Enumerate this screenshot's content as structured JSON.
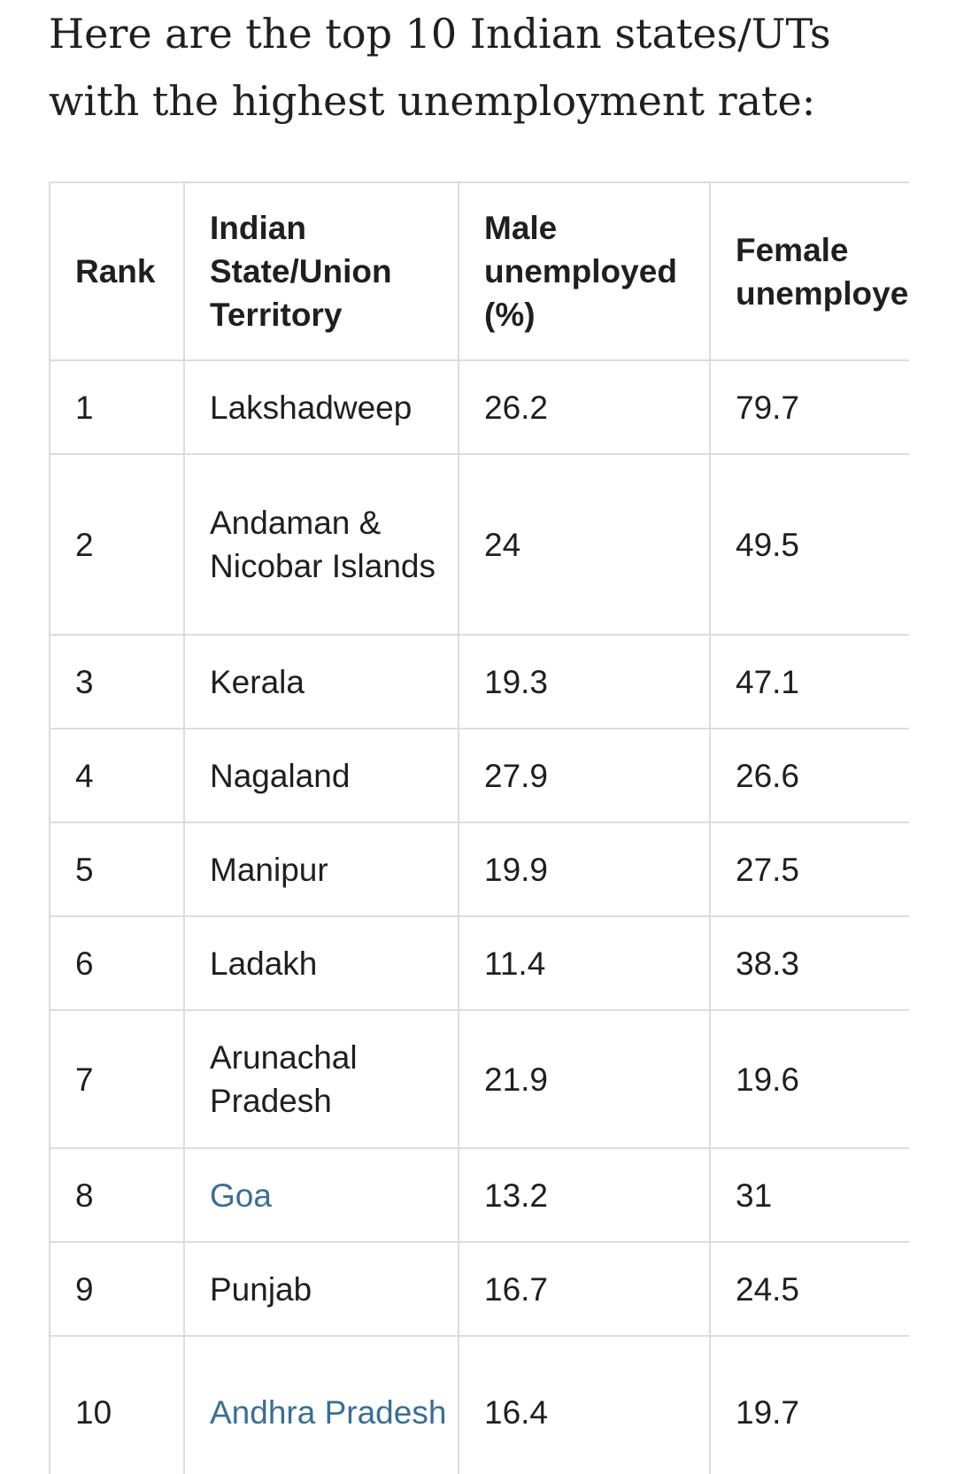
{
  "intro_text": "Here are the top 10 Indian states/UTs with the highest unemployment rate:",
  "table": {
    "headers": {
      "rank": "Rank",
      "state": "Indian State/Union Territory",
      "male": "Male unemployed (%)",
      "female": "Female unemployed (%)"
    },
    "rows": [
      {
        "rank": "1",
        "state": "Lakshadweep",
        "male": "26.2",
        "female": "79.7"
      },
      {
        "rank": "2",
        "state": "Andaman & Nicobar Islands",
        "male": "24",
        "female": "49.5"
      },
      {
        "rank": "3",
        "state": "Kerala",
        "male": "19.3",
        "female": "47.1"
      },
      {
        "rank": "4",
        "state": "Nagaland",
        "male": "27.9",
        "female": "26.6"
      },
      {
        "rank": "5",
        "state": "Manipur",
        "male": "19.9",
        "female": "27.5"
      },
      {
        "rank": "6",
        "state": "Ladakh",
        "male": "11.4",
        "female": "38.3"
      },
      {
        "rank": "7",
        "state": "Arunachal Pradesh",
        "male": "21.9",
        "female": "19.6"
      },
      {
        "rank": "8",
        "state": "Goa",
        "male": "13.2",
        "female": "31"
      },
      {
        "rank": "9",
        "state": "Punjab",
        "male": "16.7",
        "female": "24.5"
      },
      {
        "rank": "10",
        "state": "Andhra Pradesh",
        "male": "16.4",
        "female": "19.7"
      }
    ]
  },
  "colors": {
    "link": "#3b6e94",
    "border": "#dcdcdc"
  }
}
